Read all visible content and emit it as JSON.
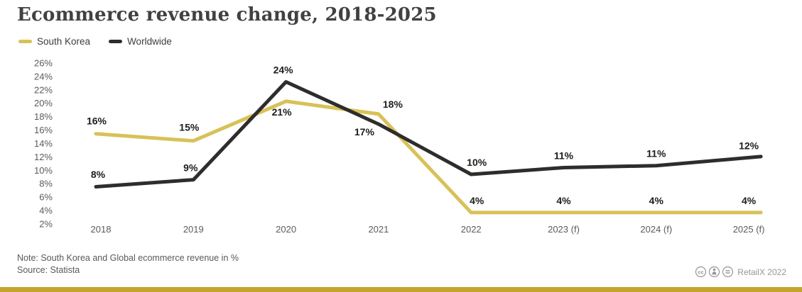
{
  "header": {
    "title": "Ecommerce revenue change, 2018-2025"
  },
  "legend": {
    "items": [
      {
        "label": "South Korea",
        "color": "#d8c158"
      },
      {
        "label": "Worldwide",
        "color": "#2e2d2b"
      }
    ]
  },
  "chart_data": {
    "type": "line",
    "title": "Ecommerce revenue change, 2018-2025",
    "categories": [
      "2018",
      "2019",
      "2020",
      "2021",
      "2022",
      "2023 (f)",
      "2024 (f)",
      "2025 (f)"
    ],
    "series": [
      {
        "name": "South Korea",
        "color": "#d8c158",
        "values": [
          16,
          15,
          21,
          18,
          4,
          4,
          4,
          4
        ],
        "labels": [
          "16%",
          "15%",
          "21%",
          "18%",
          "4%",
          "4%",
          "4%",
          "4%"
        ],
        "line_values": [
          15.4,
          14.4,
          20.3,
          18.4,
          3.7,
          3.7,
          3.7,
          3.7
        ]
      },
      {
        "name": "Worldwide",
        "color": "#2e2d2b",
        "values": [
          8,
          9,
          24,
          17,
          10,
          11,
          11,
          12
        ],
        "labels": [
          "8%",
          "9%",
          "24%",
          "17%",
          "10%",
          "11%",
          "11%",
          "12%"
        ],
        "line_values": [
          7.6,
          8.6,
          23.2,
          16.9,
          9.4,
          10.4,
          10.7,
          11.9
        ]
      }
    ],
    "xlabel": "",
    "ylabel": "",
    "ylim": [
      2,
      26
    ],
    "y_tick_step": 2,
    "y_ticks": [
      "26%",
      "24%",
      "22%",
      "20%",
      "18%",
      "16%",
      "14%",
      "12%",
      "10%",
      "8%",
      "6%",
      "4%",
      "2%"
    ],
    "grid": false,
    "legend_position": "top-left",
    "data_labels_shown": true
  },
  "footer": {
    "note": "Note: South Korea and Global ecommerce revenue in %",
    "source": "Source: Statista",
    "credit": "RetailX 2022",
    "license_icons": [
      "cc",
      "attribution",
      "no-derivatives"
    ]
  },
  "colors": {
    "south_korea_line": "#d8c158",
    "worldwide_line": "#2e2d2b",
    "title_text": "#414042",
    "axis_text": "#5a5b5d",
    "data_label_text": "#1d1d1b",
    "footer_text": "#58595b",
    "credit_text": "#939598",
    "bottom_bar": "#c5a42e",
    "background": "#ffffff"
  }
}
